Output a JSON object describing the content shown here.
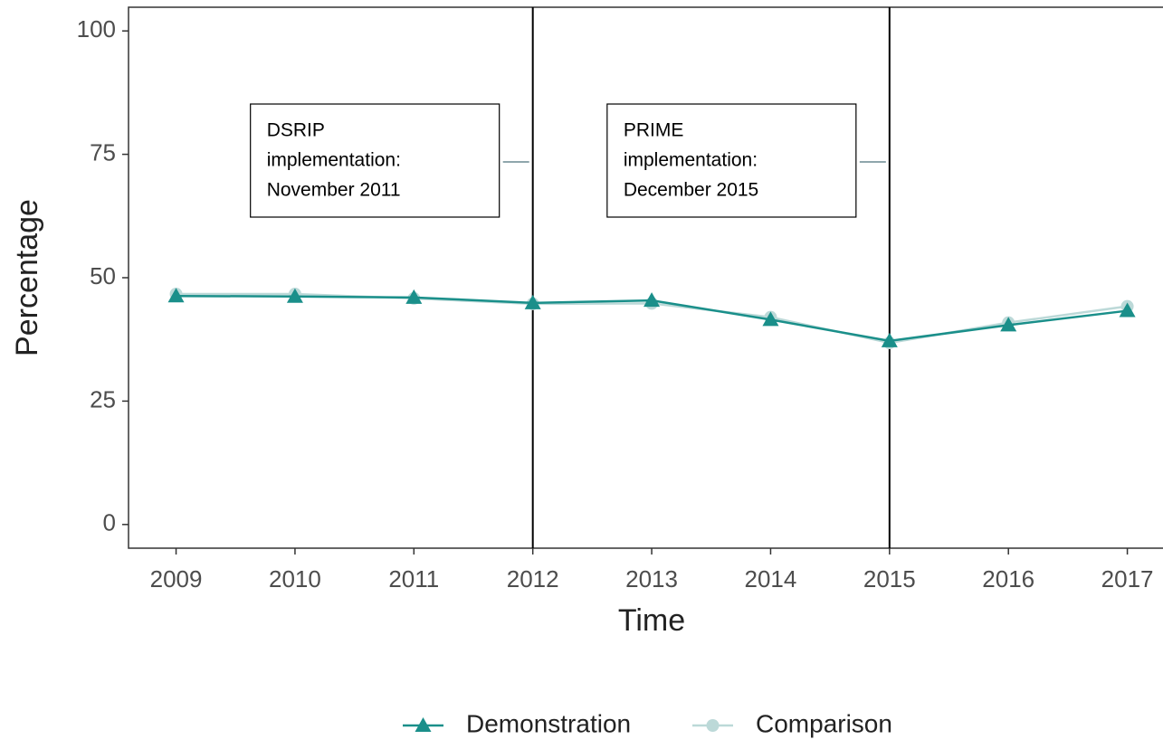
{
  "chart_data": {
    "type": "line",
    "x_label": "Time",
    "y_label": "Percentage",
    "x": [
      2009,
      2010,
      2011,
      2012,
      2013,
      2014,
      2015,
      2016,
      2017
    ],
    "series": [
      {
        "name": "Demonstration",
        "color": "#1a8f8a",
        "marker": "triangle",
        "values": [
          46.3,
          46.2,
          46.0,
          44.9,
          45.4,
          41.5,
          37.2,
          40.4,
          43.3
        ]
      },
      {
        "name": "Comparison",
        "color": "#bcd9d8",
        "marker": "circle",
        "values": [
          46.7,
          46.7,
          45.8,
          44.7,
          44.8,
          42.0,
          36.8,
          40.9,
          44.2
        ]
      }
    ],
    "xlim": [
      2008.6,
      2017.3
    ],
    "ylim": [
      -4.8,
      104.8
    ],
    "xticks": [
      2009,
      2010,
      2011,
      2012,
      2013,
      2014,
      2015,
      2016,
      2017
    ],
    "yticks": [
      0,
      25,
      50,
      75,
      100
    ],
    "vlines": [
      2012,
      2015
    ],
    "annotations": [
      {
        "lines": [
          "DSRIP",
          "implementation:",
          "November 2011"
        ]
      },
      {
        "lines": [
          "PRIME",
          "implementation:",
          "December 2015"
        ]
      }
    ],
    "legend": "bottom"
  }
}
